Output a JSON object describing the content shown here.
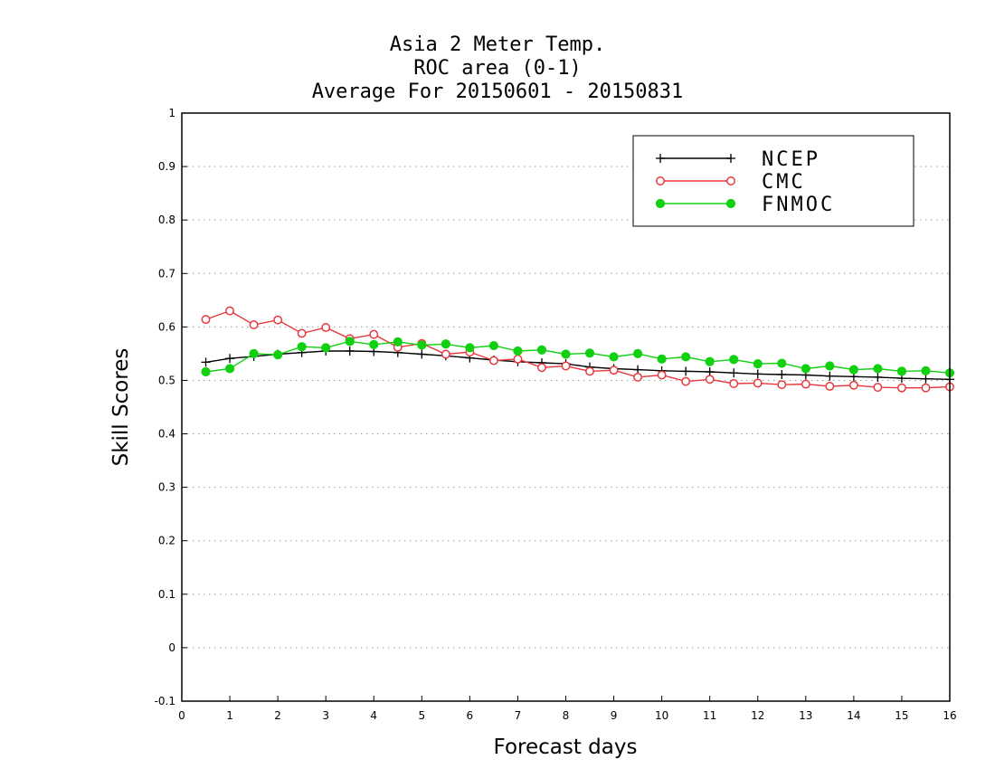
{
  "chart_data": {
    "type": "line",
    "title": [
      "Asia 2 Meter Temp.",
      "ROC area (0-1)",
      "Average For 20150601 - 20150831"
    ],
    "xlabel": "Forecast days",
    "ylabel": "Skill Scores",
    "xlim": [
      0,
      16
    ],
    "ylim": [
      -0.1,
      1
    ],
    "xticks": [
      0,
      1,
      2,
      3,
      4,
      5,
      6,
      7,
      8,
      9,
      10,
      11,
      12,
      13,
      14,
      15,
      16
    ],
    "yticks": [
      -0.1,
      0,
      0.1,
      0.2,
      0.3,
      0.4,
      0.5,
      0.6,
      0.7,
      0.8,
      0.9,
      1
    ],
    "ytick_labels": [
      "-0.1",
      "0",
      "0.1",
      "0.2",
      "0.3",
      "0.4",
      "0.5",
      "0.6",
      "0.7",
      "0.8",
      "0.9",
      "1"
    ],
    "grid": "horizontal dotted",
    "legend_position": "top-right",
    "x": [
      0.5,
      1,
      1.5,
      2,
      2.5,
      3,
      3.5,
      4,
      4.5,
      5,
      5.5,
      6,
      6.5,
      7,
      7.5,
      8,
      8.5,
      9,
      9.5,
      10,
      10.5,
      11,
      11.5,
      12,
      12.5,
      13,
      13.5,
      14,
      14.5,
      15,
      15.5,
      16
    ],
    "series": [
      {
        "name": "NCEP",
        "color": "#000000",
        "marker": "plus",
        "values": [
          0.534,
          0.541,
          0.545,
          0.549,
          0.552,
          0.555,
          0.555,
          0.554,
          0.552,
          0.549,
          0.546,
          0.542,
          0.538,
          0.535,
          0.533,
          0.531,
          0.525,
          0.522,
          0.52,
          0.518,
          0.517,
          0.516,
          0.514,
          0.512,
          0.511,
          0.51,
          0.508,
          0.507,
          0.506,
          0.504,
          0.503,
          0.502
        ]
      },
      {
        "name": "CMC",
        "color": "#e8383c",
        "marker": "open-circle",
        "values": [
          0.614,
          0.63,
          0.604,
          0.613,
          0.588,
          0.599,
          0.578,
          0.586,
          0.562,
          0.569,
          0.549,
          0.553,
          0.537,
          0.54,
          0.524,
          0.527,
          0.517,
          0.519,
          0.506,
          0.51,
          0.498,
          0.502,
          0.494,
          0.495,
          0.492,
          0.493,
          0.489,
          0.491,
          0.487,
          0.486,
          0.486,
          0.488
        ]
      },
      {
        "name": "FNMOC",
        "color": "#11d011",
        "marker": "filled-circle",
        "values": [
          0.516,
          0.522,
          0.55,
          0.548,
          0.563,
          0.561,
          0.573,
          0.567,
          0.572,
          0.566,
          0.568,
          0.561,
          0.565,
          0.555,
          0.557,
          0.549,
          0.551,
          0.544,
          0.55,
          0.54,
          0.544,
          0.535,
          0.539,
          0.531,
          0.532,
          0.522,
          0.527,
          0.52,
          0.522,
          0.517,
          0.518,
          0.514
        ]
      }
    ]
  }
}
